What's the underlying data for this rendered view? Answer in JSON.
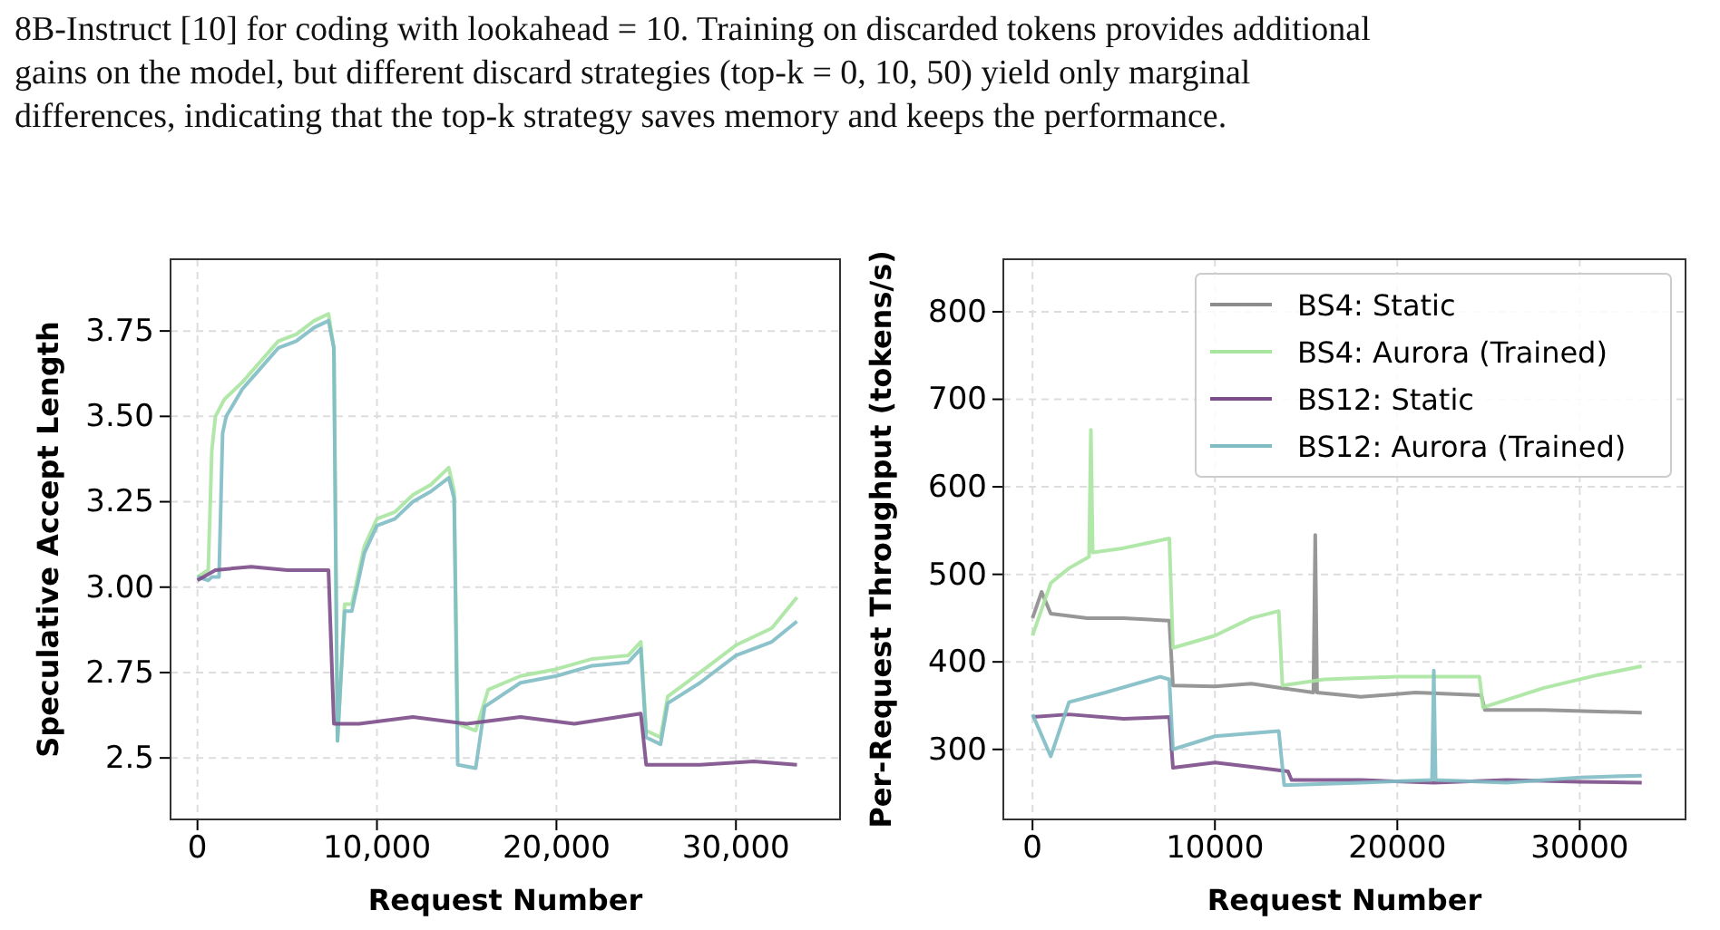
{
  "chart_data": [
    {
      "type": "line",
      "annotations": [
        "8B-Instruct [10] for coding with lookahead = 10. Training on discarded tokens provides additional",
        "gains on the model, but different discard strategies (top-k = 0, 10, 50) yield only marginal",
        "differences, indicating that the top-k strategy saves memory and keeps the performance."
      ],
      "xlabel": "Request Number",
      "ylabel": "Speculative Accept Length",
      "xlim": [
        -1500,
        35800
      ],
      "ylim": [
        2.32,
        3.96
      ],
      "xticks": [
        0,
        {
          "value": 10000,
          "label": "10,000"
        },
        {
          "value": 20000,
          "label": "20,000"
        },
        {
          "value": 30000,
          "label": "30,000"
        }
      ],
      "yticks": [
        2.5,
        2.75,
        {
          "value": 3,
          "label": "3.00"
        },
        3.25,
        {
          "value": 3.5,
          "label": "3.50"
        },
        3.75
      ],
      "grid": true,
      "legend": false,
      "series": [
        {
          "color": "#a8e6a0",
          "x": [
            0,
            600,
            800,
            1000,
            1500,
            2500,
            3500,
            4500,
            5500,
            6500,
            7300,
            7600,
            7800,
            8200,
            8600,
            9300,
            10000,
            11000,
            12000,
            13000,
            14000,
            14300,
            14500,
            15500,
            16200,
            18000,
            20000,
            22000,
            24000,
            24700,
            25000,
            25800,
            26200,
            28000,
            30000,
            32000,
            33400
          ],
          "values": [
            3.03,
            3.05,
            3.4,
            3.5,
            3.55,
            3.6,
            3.66,
            3.72,
            3.74,
            3.78,
            3.8,
            3.7,
            2.55,
            2.95,
            2.95,
            3.12,
            3.2,
            3.22,
            3.27,
            3.3,
            3.35,
            3.28,
            2.6,
            2.58,
            2.7,
            2.74,
            2.76,
            2.79,
            2.8,
            2.84,
            2.58,
            2.56,
            2.68,
            2.75,
            2.83,
            2.88,
            2.97
          ]
        },
        {
          "color": "#7fbcc4",
          "x": [
            0,
            600,
            800,
            1200,
            1400,
            1600,
            2500,
            3500,
            4500,
            5500,
            6500,
            7300,
            7600,
            7800,
            8200,
            8600,
            9300,
            10000,
            11000,
            12000,
            13000,
            14000,
            14300,
            14500,
            15500,
            16000,
            18000,
            20000,
            22000,
            24000,
            24700,
            25000,
            25800,
            26200,
            28000,
            30000,
            32000,
            33400
          ],
          "values": [
            3.03,
            3.02,
            3.03,
            3.03,
            3.45,
            3.5,
            3.58,
            3.64,
            3.7,
            3.72,
            3.76,
            3.78,
            3.7,
            2.55,
            2.93,
            2.93,
            3.1,
            3.18,
            3.2,
            3.25,
            3.28,
            3.32,
            3.26,
            2.48,
            2.47,
            2.65,
            2.72,
            2.74,
            2.77,
            2.78,
            2.82,
            2.56,
            2.54,
            2.66,
            2.72,
            2.8,
            2.84,
            2.9
          ]
        },
        {
          "color": "#7b4d8a",
          "x": [
            0,
            1000,
            3000,
            5000,
            7300,
            7600,
            9000,
            12000,
            15000,
            18000,
            21000,
            24700,
            25000,
            28000,
            31000,
            33400
          ],
          "values": [
            3.02,
            3.05,
            3.06,
            3.05,
            3.05,
            2.6,
            2.6,
            2.62,
            2.6,
            2.62,
            2.6,
            2.63,
            2.48,
            2.48,
            2.49,
            2.48
          ]
        }
      ]
    },
    {
      "type": "line",
      "xlabel": "Request Number",
      "ylabel": "Per-Request Throughput (tokens/s)",
      "xlim": [
        -1600,
        35800
      ],
      "ylim": [
        220,
        860
      ],
      "xticks": [
        0,
        10000,
        20000,
        30000
      ],
      "yticks": [
        300,
        400,
        500,
        600,
        700,
        800
      ],
      "grid": true,
      "legend": "top right",
      "series": [
        {
          "name": "BS4: Static",
          "color": "#8c8c8c",
          "x": [
            0,
            500,
            1000,
            3000,
            5000,
            7500,
            7700,
            10000,
            12000,
            13700,
            15400,
            15500,
            15600,
            18000,
            21000,
            24600,
            24800,
            28000,
            33400
          ],
          "values": [
            450,
            480,
            455,
            450,
            450,
            447,
            373,
            372,
            375,
            370,
            365,
            545,
            365,
            360,
            365,
            362,
            345,
            345,
            342
          ]
        },
        {
          "name": "BS4: Aurora (Trained)",
          "color": "#a8e6a0",
          "x": [
            0,
            1000,
            2000,
            3100,
            3200,
            3300,
            5000,
            7500,
            7700,
            10000,
            12000,
            13500,
            13700,
            16000,
            20000,
            24500,
            24700,
            28000,
            31000,
            33400
          ],
          "values": [
            430,
            490,
            507,
            520,
            665,
            525,
            530,
            541,
            416,
            430,
            450,
            458,
            373,
            380,
            383,
            383,
            348,
            370,
            385,
            395
          ]
        },
        {
          "name": "BS12: Static",
          "color": "#7b4d8a",
          "x": [
            0,
            2000,
            5000,
            7500,
            7700,
            10000,
            12000,
            14000,
            14200,
            18000,
            22000,
            26000,
            30000,
            33400
          ],
          "values": [
            337,
            340,
            335,
            337,
            279,
            285,
            280,
            275,
            265,
            265,
            262,
            265,
            263,
            262
          ]
        },
        {
          "name": "BS12: Aurora (Trained)",
          "color": "#7fbcc4",
          "x": [
            0,
            1000,
            2000,
            4000,
            7000,
            7500,
            7700,
            10000,
            13500,
            13800,
            18000,
            21900,
            22000,
            22100,
            26000,
            30000,
            33400
          ],
          "values": [
            340,
            292,
            354,
            365,
            383,
            380,
            300,
            315,
            321,
            259,
            262,
            265,
            390,
            265,
            262,
            268,
            270
          ]
        }
      ]
    }
  ]
}
